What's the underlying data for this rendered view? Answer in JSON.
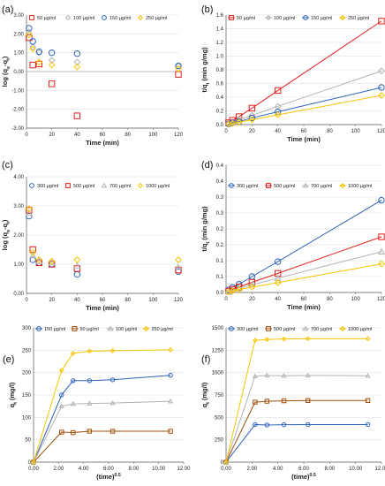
{
  "colors": {
    "red": "#e0201b",
    "gray": "#b3b3b3",
    "blue": "#2e63b8",
    "yellow": "#f5c400",
    "brown": "#a0500a",
    "gridline": "#d9d9d9"
  },
  "chart_data": [
    {
      "id": "a",
      "panel_label": "(a)",
      "type": "scatter",
      "xlabel": "Time (min)",
      "ylabel": "log (q_e-q_t)",
      "xlim": [
        0,
        120
      ],
      "ylim": [
        -3,
        3
      ],
      "xticks": [
        "0",
        "20",
        "40",
        "60",
        "80",
        "100",
        "120"
      ],
      "yticks": [
        "-3.00",
        "-2.00",
        "-1.00",
        "0.00",
        "1.00",
        "2.00",
        "3.00"
      ],
      "legend_position": "top",
      "series": [
        {
          "name": "50 µg/ml",
          "color": "red",
          "marker": "square",
          "x": [
            2,
            5,
            10,
            20,
            40,
            120
          ],
          "y": [
            1.8,
            0.35,
            0.4,
            -0.65,
            -2.35,
            -0.15
          ]
        },
        {
          "name": "100 µg/ml",
          "color": "gray",
          "marker": "diamond",
          "x": [
            2,
            5,
            10,
            20,
            40,
            120
          ],
          "y": [
            2.1,
            1.3,
            1.0,
            0.6,
            0.5,
            0.3
          ]
        },
        {
          "name": "150 µg/ml",
          "color": "blue",
          "marker": "circle",
          "x": [
            2,
            5,
            10,
            20,
            40,
            120
          ],
          "y": [
            2.3,
            1.6,
            1.05,
            1.0,
            0.95,
            0.3
          ]
        },
        {
          "name": "250 µg/ml",
          "color": "yellow",
          "marker": "diamond",
          "x": [
            2,
            5,
            10,
            20,
            40,
            120
          ],
          "y": [
            1.95,
            1.2,
            0.5,
            0.35,
            0.25,
            0.15
          ]
        }
      ]
    },
    {
      "id": "b",
      "panel_label": "(b)",
      "type": "line",
      "xlabel": "Time (min)",
      "ylabel": "t/q_t (min g/mg)",
      "xlim": [
        0,
        120
      ],
      "ylim": [
        0,
        1.8
      ],
      "xticks": [
        "0",
        "20",
        "40",
        "60",
        "80",
        "100",
        "120"
      ],
      "yticks": [
        "0.0",
        "0.2",
        "0.4",
        "0.6",
        "0.8",
        "1.0",
        "1.2",
        "1.4",
        "1.6"
      ],
      "legend_position": "top",
      "series": [
        {
          "name": "50 µg/ml",
          "color": "red",
          "marker": "square",
          "x": [
            2,
            5,
            10,
            20,
            40,
            120
          ],
          "y": [
            0.03,
            0.07,
            0.13,
            0.27,
            0.56,
            1.7
          ]
        },
        {
          "name": "100 µg/ml",
          "color": "gray",
          "marker": "diamond",
          "x": [
            2,
            5,
            10,
            20,
            40,
            120
          ],
          "y": [
            0.02,
            0.04,
            0.08,
            0.15,
            0.3,
            0.88
          ]
        },
        {
          "name": "150 µg/ml",
          "color": "blue",
          "marker": "circle",
          "x": [
            2,
            5,
            10,
            20,
            40,
            120
          ],
          "y": [
            0.01,
            0.03,
            0.05,
            0.11,
            0.21,
            0.61
          ]
        },
        {
          "name": "250 µg/ml",
          "color": "yellow",
          "marker": "diamond",
          "x": [
            2,
            5,
            10,
            20,
            40,
            120
          ],
          "y": [
            0.01,
            0.02,
            0.04,
            0.08,
            0.16,
            0.48
          ]
        }
      ]
    },
    {
      "id": "c",
      "panel_label": "(c)",
      "type": "scatter",
      "xlabel": "Time (min)",
      "ylabel": "log (q_e-q_t)",
      "xlim": [
        0,
        120
      ],
      "ylim": [
        0,
        4
      ],
      "xticks": [
        "0",
        "20",
        "40",
        "60",
        "80",
        "100",
        "120"
      ],
      "yticks": [
        "0.00",
        "1.00",
        "2.00",
        "3.00",
        "4.00"
      ],
      "legend_position": "top",
      "series": [
        {
          "name": "300 µg/ml",
          "color": "blue",
          "marker": "circle",
          "x": [
            2,
            5,
            10,
            20,
            40,
            120
          ],
          "y": [
            2.65,
            1.15,
            1.05,
            1.0,
            0.65,
            0.75
          ]
        },
        {
          "name": "500 µg/ml",
          "color": "red",
          "marker": "square",
          "x": [
            2,
            5,
            10,
            20,
            40,
            120
          ],
          "y": [
            2.85,
            1.5,
            1.05,
            1.0,
            0.85,
            0.8
          ]
        },
        {
          "name": "700 µg/ml",
          "color": "gray",
          "marker": "triangle",
          "x": [
            2,
            5,
            10,
            20,
            40,
            120
          ],
          "y": [
            2.75,
            1.3,
            1.1,
            1.05,
            0.95,
            0.9
          ]
        },
        {
          "name": "1000 µg/ml",
          "color": "yellow",
          "marker": "diamond",
          "x": [
            2,
            5,
            10,
            20,
            40,
            120
          ],
          "y": [
            2.9,
            1.4,
            1.15,
            1.1,
            1.15,
            1.15
          ]
        }
      ]
    },
    {
      "id": "d",
      "panel_label": "(d)",
      "type": "line",
      "xlabel": "Time (min)",
      "ylabel": "t/q_t (min g/mg)",
      "xlim": [
        0,
        120
      ],
      "ylim": [
        0,
        0.4
      ],
      "xticks": [
        "0",
        "20",
        "40",
        "60",
        "80",
        "100",
        "120"
      ],
      "yticks": [
        "0.0",
        "0.1",
        "0.1",
        "0.2",
        "0.2",
        "0.3",
        "0.3",
        "0.4",
        "0.4"
      ],
      "legend_position": "top",
      "series": [
        {
          "name": "300 µg/ml",
          "color": "blue",
          "marker": "circle",
          "x": [
            2,
            5,
            10,
            20,
            40,
            120
          ],
          "y": [
            0.008,
            0.016,
            0.026,
            0.05,
            0.097,
            0.29
          ]
        },
        {
          "name": "500 µg/ml",
          "color": "red",
          "marker": "square",
          "x": [
            2,
            5,
            10,
            20,
            40,
            120
          ],
          "y": [
            0.004,
            0.01,
            0.017,
            0.032,
            0.06,
            0.175
          ]
        },
        {
          "name": "700 µg/ml",
          "color": "gray",
          "marker": "triangle",
          "x": [
            2,
            5,
            10,
            20,
            40,
            120
          ],
          "y": [
            0.003,
            0.007,
            0.013,
            0.024,
            0.045,
            0.128
          ]
        },
        {
          "name": "1000 µg/ml",
          "color": "yellow",
          "marker": "diamond",
          "x": [
            2,
            5,
            10,
            20,
            40,
            120
          ],
          "y": [
            0.002,
            0.005,
            0.009,
            0.017,
            0.031,
            0.09
          ]
        }
      ]
    },
    {
      "id": "e",
      "panel_label": "(e)",
      "type": "line",
      "xlabel": "(time)^0.5",
      "ylabel": "q_t (mg/l)",
      "xlim": [
        0,
        12
      ],
      "ylim": [
        0,
        300
      ],
      "xticks": [
        "0.00",
        "2.00",
        "4.00",
        "6.00",
        "8.00",
        "10.00",
        "12.00"
      ],
      "yticks": [
        "0",
        "50",
        "100",
        "150",
        "200",
        "250",
        "300"
      ],
      "legend_position": "top",
      "series": [
        {
          "name": "150 µg/ml",
          "color": "blue",
          "marker": "circle",
          "x": [
            0,
            2.24,
            3.16,
            4.47,
            6.32,
            10.95
          ],
          "y": [
            0,
            150,
            182,
            182,
            184,
            194
          ]
        },
        {
          "name": "50 µg/ml",
          "color": "brown",
          "marker": "square",
          "x": [
            0,
            2.24,
            3.16,
            4.47,
            6.32,
            10.95
          ],
          "y": [
            0,
            67,
            66,
            69,
            69,
            69
          ]
        },
        {
          "name": "100 µg/ml",
          "color": "gray",
          "marker": "triangle",
          "x": [
            0,
            2.24,
            3.16,
            4.47,
            6.32,
            10.95
          ],
          "y": [
            0,
            125,
            130,
            131,
            132,
            136
          ]
        },
        {
          "name": "250 µg/ml",
          "color": "yellow",
          "marker": "diamond",
          "x": [
            0,
            2.24,
            3.16,
            4.47,
            6.32,
            10.95
          ],
          "y": [
            0,
            205,
            243,
            248,
            249,
            251
          ]
        }
      ]
    },
    {
      "id": "f",
      "panel_label": "(f)",
      "type": "line",
      "xlabel": "(time)^0.5",
      "ylabel": "q_t (mg/l)",
      "xlim": [
        0,
        12
      ],
      "ylim": [
        0,
        1500
      ],
      "xticks": [
        "0.00",
        "2.00",
        "4.00",
        "6.00",
        "8.00",
        "10.00",
        "12.00"
      ],
      "yticks": [
        "0",
        "250",
        "500",
        "750",
        "1000",
        "1250",
        "1500"
      ],
      "legend_position": "top",
      "series": [
        {
          "name": "300 µg/ml",
          "color": "blue",
          "marker": "circle",
          "x": [
            0,
            2.24,
            3.16,
            4.47,
            6.32,
            10.95
          ],
          "y": [
            0,
            420,
            415,
            418,
            420,
            420
          ]
        },
        {
          "name": "500 µg/ml",
          "color": "brown",
          "marker": "square",
          "x": [
            0,
            2.24,
            3.16,
            4.47,
            6.32,
            10.95
          ],
          "y": [
            0,
            670,
            680,
            685,
            688,
            688
          ]
        },
        {
          "name": "700 µg/ml",
          "color": "gray",
          "marker": "triangle",
          "x": [
            0,
            2.24,
            3.16,
            4.47,
            6.32,
            10.95
          ],
          "y": [
            0,
            960,
            968,
            965,
            968,
            965
          ]
        },
        {
          "name": "1000 µg/ml",
          "color": "yellow",
          "marker": "diamond",
          "x": [
            0,
            2.24,
            3.16,
            4.47,
            6.32,
            10.95
          ],
          "y": [
            0,
            1360,
            1370,
            1375,
            1378,
            1378
          ]
        }
      ]
    }
  ]
}
